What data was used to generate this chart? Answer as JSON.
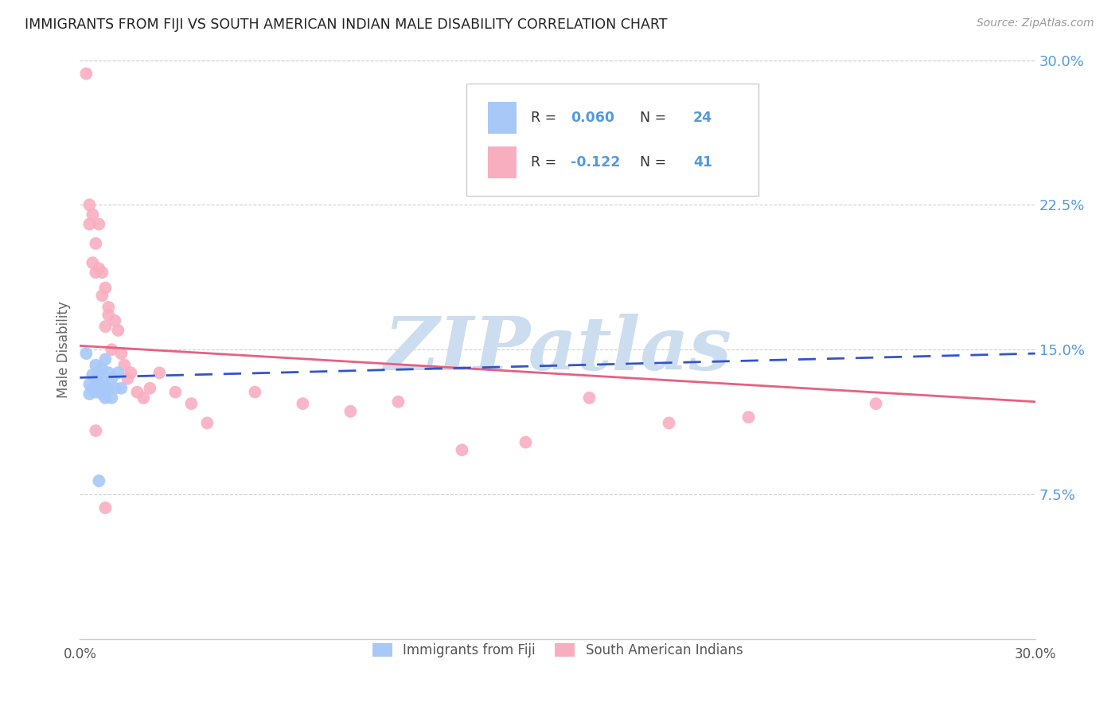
{
  "title": "IMMIGRANTS FROM FIJI VS SOUTH AMERICAN INDIAN MALE DISABILITY CORRELATION CHART",
  "source": "Source: ZipAtlas.com",
  "ylabel": "Male Disability",
  "xlim": [
    0.0,
    0.3
  ],
  "ylim": [
    0.0,
    0.3
  ],
  "fiji_R": 0.06,
  "fiji_N": 24,
  "sa_indian_R": -0.122,
  "sa_indian_N": 41,
  "fiji_color": "#a8c8f8",
  "sa_color": "#f9aec0",
  "fiji_line_color": "#3355cc",
  "sa_line_color": "#e86080",
  "watermark_text": "ZIPatlas",
  "watermark_color": "#ccddf0",
  "fiji_x": [
    0.002,
    0.003,
    0.003,
    0.004,
    0.004,
    0.005,
    0.005,
    0.005,
    0.006,
    0.006,
    0.007,
    0.007,
    0.007,
    0.008,
    0.008,
    0.008,
    0.009,
    0.009,
    0.01,
    0.01,
    0.011,
    0.012,
    0.013,
    0.006
  ],
  "fiji_y": [
    0.148,
    0.132,
    0.127,
    0.137,
    0.13,
    0.142,
    0.135,
    0.128,
    0.138,
    0.132,
    0.14,
    0.133,
    0.127,
    0.145,
    0.13,
    0.125,
    0.138,
    0.13,
    0.135,
    0.125,
    0.13,
    0.138,
    0.13,
    0.082
  ],
  "sa_x": [
    0.002,
    0.003,
    0.003,
    0.004,
    0.004,
    0.005,
    0.005,
    0.006,
    0.006,
    0.007,
    0.007,
    0.008,
    0.008,
    0.009,
    0.009,
    0.01,
    0.011,
    0.012,
    0.013,
    0.014,
    0.015,
    0.016,
    0.018,
    0.02,
    0.022,
    0.025,
    0.03,
    0.035,
    0.04,
    0.055,
    0.07,
    0.085,
    0.1,
    0.12,
    0.14,
    0.16,
    0.185,
    0.21,
    0.25,
    0.005,
    0.008
  ],
  "sa_y": [
    0.293,
    0.225,
    0.215,
    0.22,
    0.195,
    0.205,
    0.19,
    0.192,
    0.215,
    0.178,
    0.19,
    0.162,
    0.182,
    0.172,
    0.168,
    0.15,
    0.165,
    0.16,
    0.148,
    0.142,
    0.135,
    0.138,
    0.128,
    0.125,
    0.13,
    0.138,
    0.128,
    0.122,
    0.112,
    0.128,
    0.122,
    0.118,
    0.123,
    0.098,
    0.102,
    0.125,
    0.112,
    0.115,
    0.122,
    0.108,
    0.068
  ],
  "fiji_line_x0": 0.0,
  "fiji_line_x1": 0.3,
  "fiji_line_y0": 0.1355,
  "fiji_line_y1": 0.148,
  "sa_line_x0": 0.0,
  "sa_line_x1": 0.3,
  "sa_line_y0": 0.152,
  "sa_line_y1": 0.123
}
